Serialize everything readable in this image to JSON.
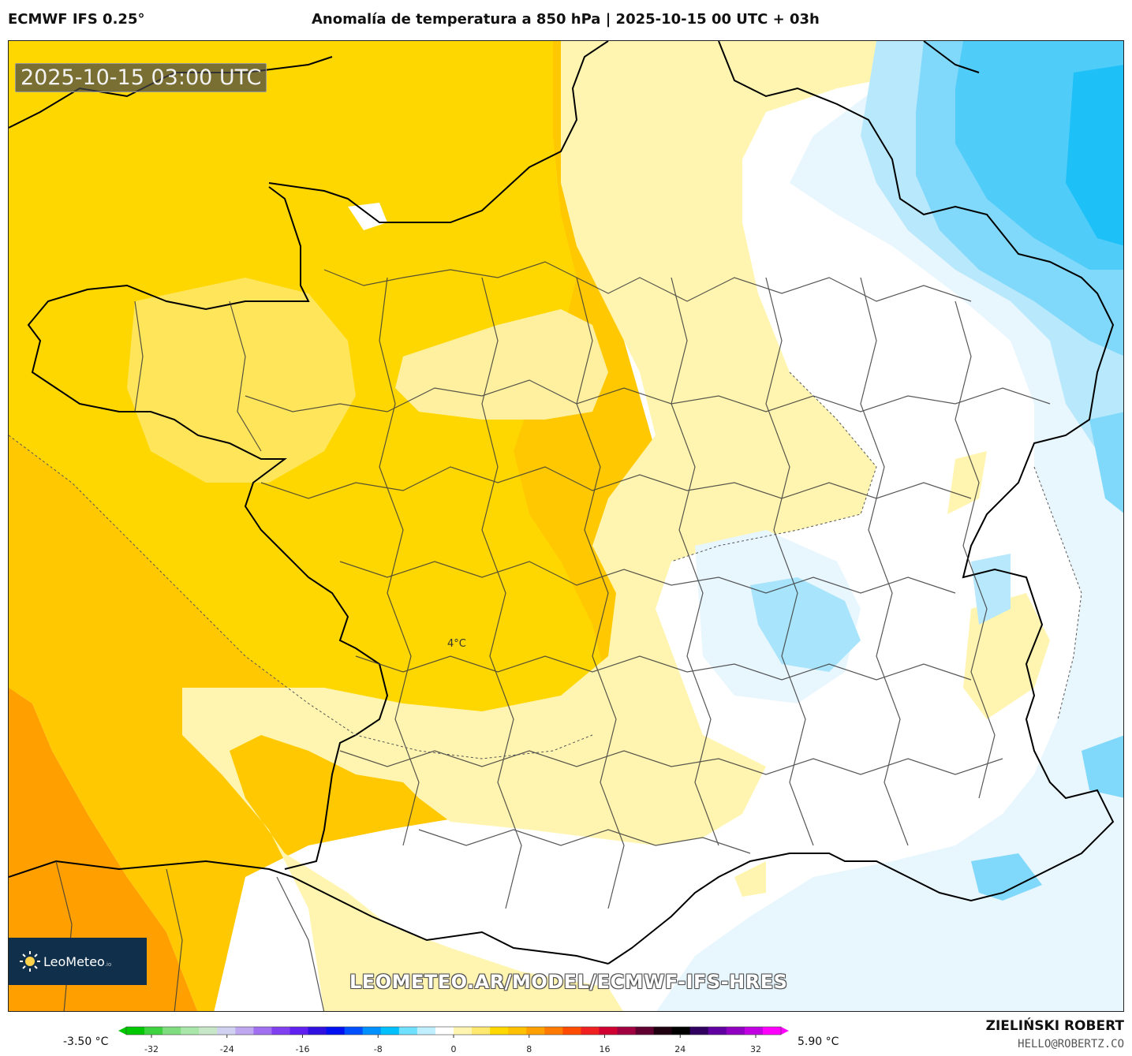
{
  "header": {
    "model": "ECMWF IFS 0.25°",
    "title": "Anomalía de temperatura a 850 hPa | 2025-10-15 00 UTC + 03h"
  },
  "map": {
    "valid_time": "2025-10-15 03:00 UTC",
    "contour_label": "4°C",
    "logo_text": "LeoMeteo",
    "logo_suffix": ".io",
    "watermark": "LEOMETEO.AR/MODEL/ECMWF-IFS-HRES"
  },
  "legend": {
    "min_label": "-3.50 °C",
    "max_label": "5.90 °C",
    "ticks": [
      "-32",
      "-24",
      "-16",
      "-8",
      "0",
      "8",
      "16",
      "24",
      "32"
    ],
    "colors": [
      "#00c800",
      "#3fd23f",
      "#7fdc7f",
      "#a9e6a9",
      "#c8e6c8",
      "#d0d0f0",
      "#c0a8f0",
      "#a070f0",
      "#8040f0",
      "#6020f0",
      "#3010e0",
      "#0010f0",
      "#0050ff",
      "#0090ff",
      "#00c0ff",
      "#70e0ff",
      "#c0f0ff",
      "#ffffff",
      "#fff5b0",
      "#ffe870",
      "#ffd800",
      "#ffc000",
      "#ffa000",
      "#ff7a00",
      "#ff4c00",
      "#f02020",
      "#d00030",
      "#a00040",
      "#600030",
      "#200010",
      "#000000",
      "#300060",
      "#6000a0",
      "#9000c0",
      "#c000e0",
      "#ff00ff"
    ]
  },
  "credits": {
    "author": "ZIELIŃSKI ROBERT",
    "email": "HELLO@ROBERTZ.CO"
  }
}
